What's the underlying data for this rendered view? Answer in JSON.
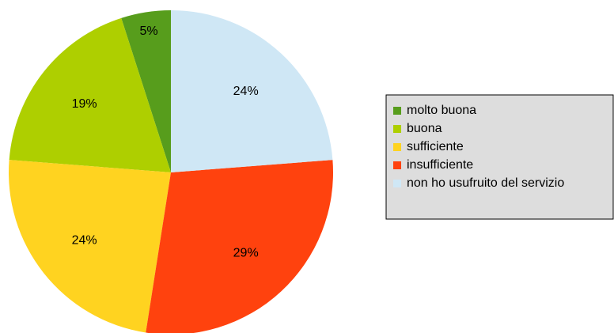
{
  "chart_data": {
    "type": "pie",
    "categories": [
      "molto buona",
      "buona",
      "sufficiente",
      "insufficiente",
      "non ho usufruito del servizio"
    ],
    "values": [
      5,
      19,
      24,
      29,
      24
    ],
    "value_labels": [
      "5%",
      "19%",
      "24%",
      "29%",
      "24%"
    ],
    "colors": [
      "#579d1c",
      "#aecf00",
      "#ffd320",
      "#ff420e",
      "#cfe7f5"
    ],
    "legend": "right"
  }
}
